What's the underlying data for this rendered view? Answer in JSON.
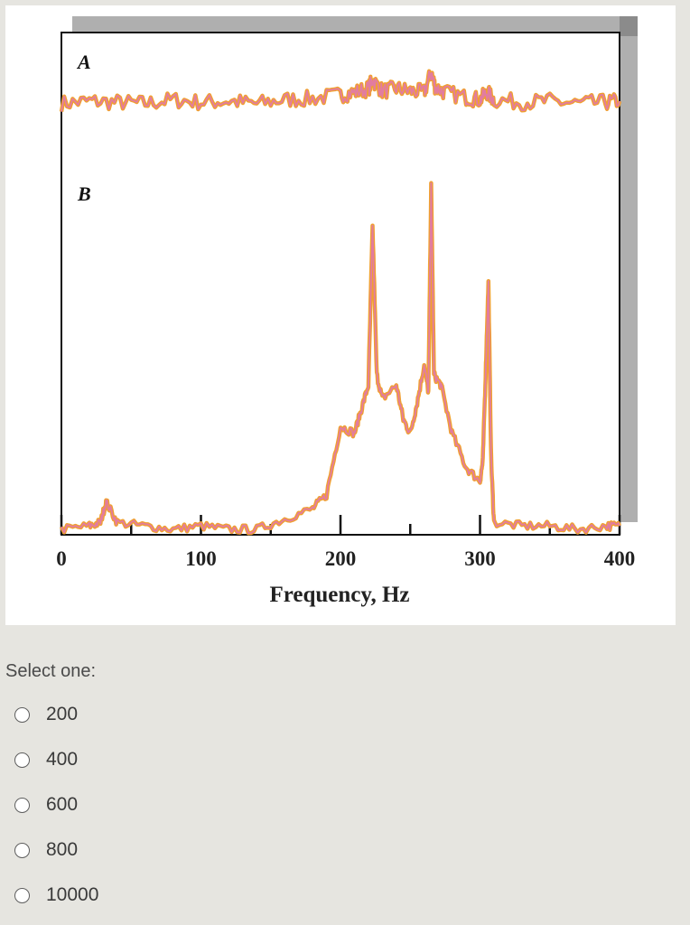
{
  "figure": {
    "panel_a_label": "A",
    "panel_b_label": "B",
    "xlabel": "Frequency, Hz",
    "x_ticks": [
      "0",
      "100",
      "200",
      "300",
      "400"
    ],
    "trace_color": "#f0a030",
    "trace_inner_color": "#e27ca0"
  },
  "chart_data": {
    "type": "line",
    "title": "",
    "xlabel": "Frequency, Hz",
    "ylabel": "",
    "xlim": [
      0,
      400
    ],
    "x_ticks": [
      0,
      100,
      200,
      300,
      400
    ],
    "grid": false,
    "series": [
      {
        "name": "A",
        "x": [
          0,
          20,
          40,
          60,
          80,
          100,
          120,
          140,
          160,
          180,
          200,
          210,
          220,
          223,
          230,
          240,
          250,
          260,
          265,
          268,
          275,
          290,
          300,
          305,
          310,
          330,
          350,
          370,
          390,
          400
        ],
        "y": [
          0.43,
          0.45,
          0.44,
          0.43,
          0.46,
          0.44,
          0.45,
          0.43,
          0.46,
          0.47,
          0.5,
          0.52,
          0.55,
          0.62,
          0.53,
          0.55,
          0.53,
          0.52,
          0.68,
          0.56,
          0.52,
          0.48,
          0.46,
          0.52,
          0.46,
          0.44,
          0.45,
          0.43,
          0.44,
          0.45
        ]
      },
      {
        "name": "B",
        "x": [
          0,
          20,
          28,
          32,
          40,
          60,
          80,
          100,
          120,
          140,
          160,
          180,
          190,
          200,
          210,
          215,
          220,
          223,
          226,
          230,
          240,
          245,
          250,
          255,
          260,
          263,
          265,
          267,
          272,
          280,
          290,
          300,
          302,
          304,
          306,
          308,
          310,
          330,
          350,
          370,
          390,
          400
        ],
        "y": [
          0.0,
          0.01,
          0.02,
          0.08,
          0.02,
          0.01,
          0.0,
          0.01,
          0.0,
          0.0,
          0.03,
          0.06,
          0.1,
          0.3,
          0.28,
          0.35,
          0.42,
          0.88,
          0.45,
          0.38,
          0.42,
          0.32,
          0.28,
          0.37,
          0.48,
          0.4,
          1.0,
          0.45,
          0.42,
          0.28,
          0.18,
          0.14,
          0.2,
          0.45,
          0.72,
          0.2,
          0.02,
          0.01,
          0.01,
          0.0,
          0.01,
          0.01
        ]
      }
    ]
  },
  "quiz": {
    "prompt": "Select one:",
    "options": [
      {
        "label": "200",
        "selected": false
      },
      {
        "label": "400",
        "selected": false
      },
      {
        "label": "600",
        "selected": false
      },
      {
        "label": "800",
        "selected": false
      },
      {
        "label": "10000",
        "selected": false
      }
    ]
  }
}
